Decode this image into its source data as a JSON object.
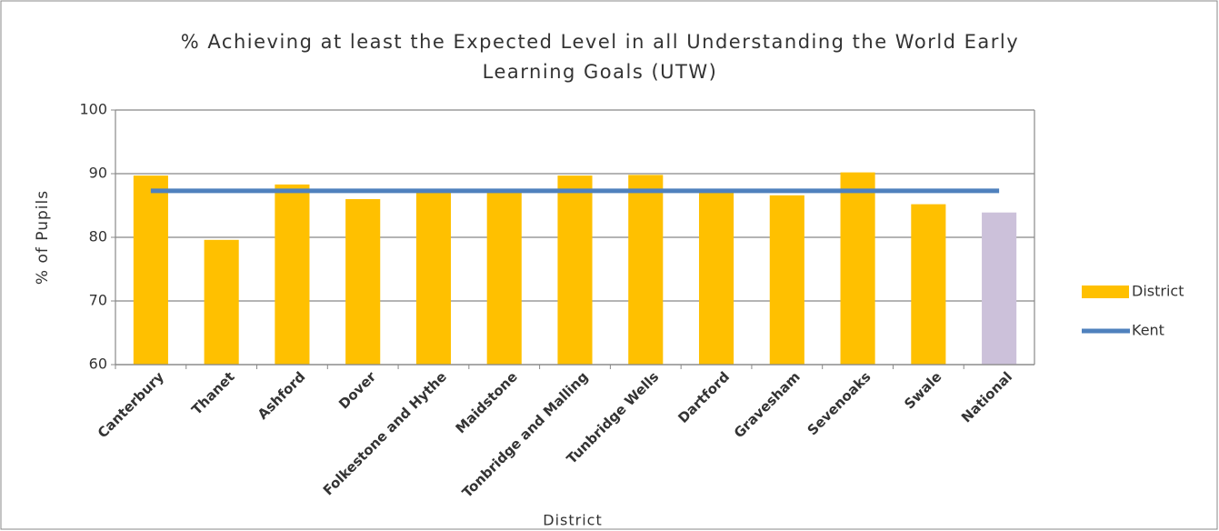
{
  "chart_data": {
    "type": "bar_line",
    "title": "% Achieving at least the Expected Level in all Understanding the World Early Learning Goals (UTW)",
    "x_label": "District",
    "y_label": "% of Pupils",
    "categories": [
      "Canterbury",
      "Thanet",
      "Ashford",
      "Dover",
      "Folkestone and Hythe",
      "Maidstone",
      "Tonbridge and Malling",
      "Tunbridge Wells",
      "Dartford",
      "Gravesham",
      "Sevenoaks",
      "Swale",
      "National"
    ],
    "series": [
      {
        "name": "District",
        "type": "bar",
        "color": "#ffc000",
        "colors": [
          "#ffc000",
          "#ffc000",
          "#ffc000",
          "#ffc000",
          "#ffc000",
          "#ffc000",
          "#ffc000",
          "#ffc000",
          "#ffc000",
          "#ffc000",
          "#ffc000",
          "#ffc000",
          "#ccc1da"
        ],
        "values": [
          89.7,
          79.6,
          88.3,
          86.0,
          87.3,
          87.3,
          89.7,
          89.8,
          87.3,
          86.6,
          90.2,
          85.2,
          83.9
        ]
      },
      {
        "name": "Kent",
        "type": "line",
        "color": "#4f81bd",
        "values": [
          87.3,
          87.3,
          87.3,
          87.3,
          87.3,
          87.3,
          87.3,
          87.3,
          87.3,
          87.3,
          87.3,
          87.3,
          87.3
        ]
      }
    ],
    "ylim": [
      60,
      100
    ],
    "yticks": [
      60,
      70,
      80,
      90,
      100
    ],
    "grid": true,
    "legend": "right"
  }
}
